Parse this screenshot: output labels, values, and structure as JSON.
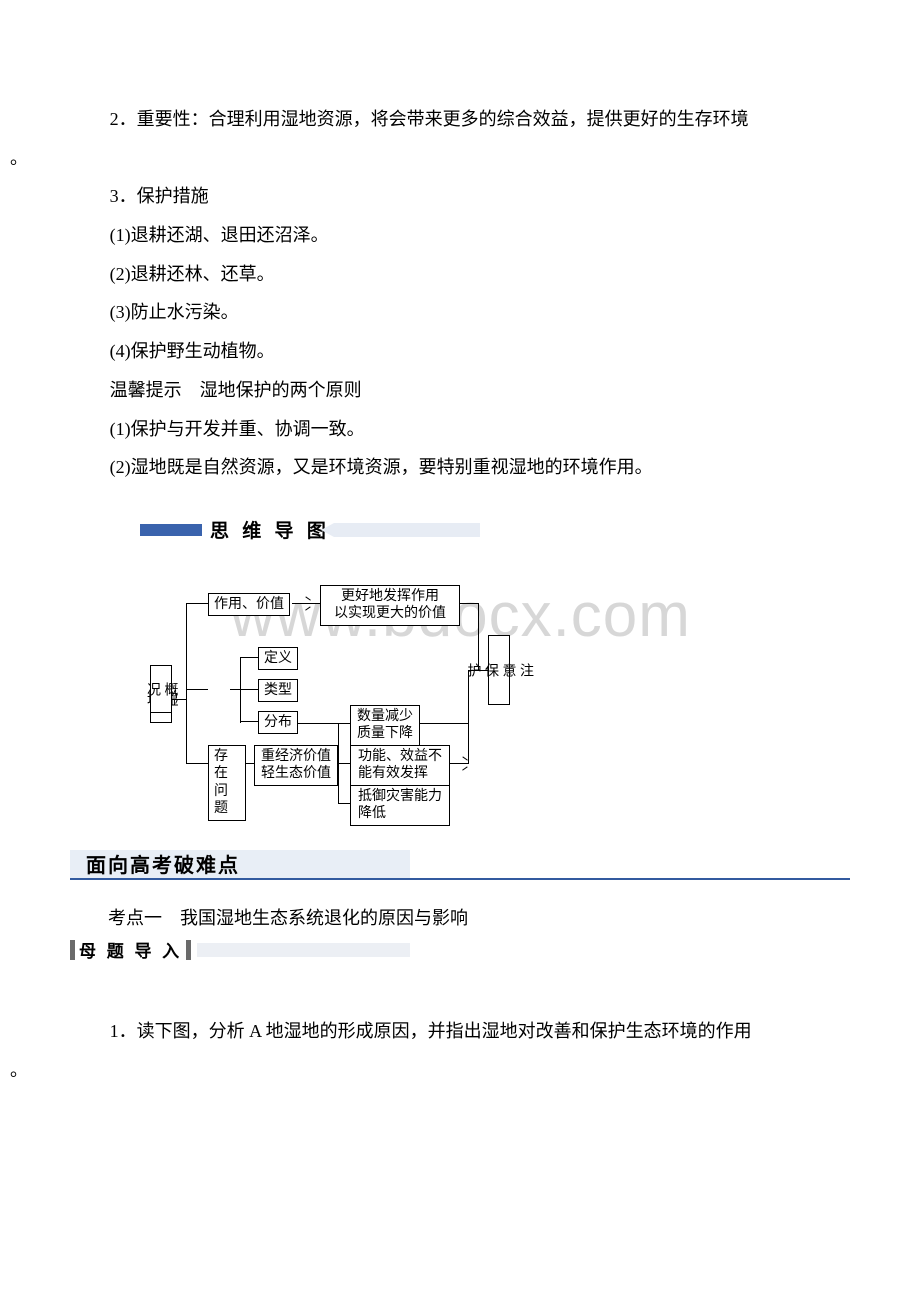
{
  "lines": {
    "p2": "2．重要性：合理利用湿地资源，将会带来更多的综合效益，提供更好的生存环境",
    "p2b": "。",
    "p3": "3．保护措施",
    "p3a": "(1)退耕还湖、退田还沼泽。",
    "p3b": "(2)退耕还林、还草。",
    "p3c": "(3)防止水污染。",
    "p3d": "(4)保护野生动植物。",
    "tip": "温馨提示　湿地保护的两个原则",
    "tipA": "(1)保护与开发并重、协调一致。",
    "tipB": "(2)湿地既是自然资源，又是环境资源，要特别重视湿地的环境作用。"
  },
  "sectionMind": "思 维 导 图",
  "watermark": "www.bdocx.com",
  "diagram": {
    "root": "湿\n地",
    "gaikuang": "概\n况",
    "zuoyong": "作用、价值",
    "dingyi": "定义",
    "leixing": "类型",
    "fenbu": "分布",
    "cunzai": "存在\n问题",
    "zhongjing": "重经济价值\n轻生态价值",
    "genghao": "更好地发挥作用\n以实现更大的价值",
    "shuliang": "数量减少\n质量下降",
    "gongneng": "功能、效益不\n能有效发挥",
    "diyu": "抵御灾害能力\n降低",
    "zhuyi": "注\n意\n保\n护"
  },
  "heading2": "面向高考破难点",
  "kaodian": "考点一　我国湿地生态系统退化的原因与影响",
  "muti": "母 题 导 入",
  "q1": "1．读下图，分析 A 地湿地的形成原因，并指出湿地对改善和保护生态环境的作用",
  "q1b": "。",
  "colors": {
    "barBlue": "#3a63ad",
    "barPale": "#e7ecf4",
    "underline": "#325a9f",
    "headBg": "#e8eef6",
    "watermark": "#d7d7d7"
  }
}
